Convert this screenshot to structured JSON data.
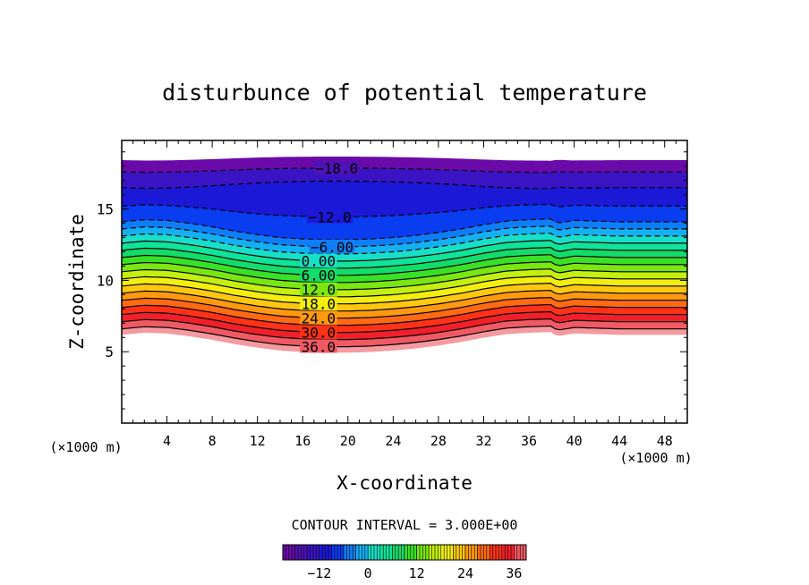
{
  "chart_data": {
    "type": "filled-contour",
    "title": "disturbunce of potential temperature",
    "xlabel": "X-coordinate",
    "ylabel": "Z-coordinate",
    "x_unit": "(×1000 m)",
    "z_unit": "(×1000 m)",
    "xlim": [
      0,
      50
    ],
    "ylim": [
      0,
      19.8
    ],
    "x_ticks": [
      4,
      8,
      12,
      16,
      20,
      24,
      28,
      32,
      36,
      40,
      44,
      48
    ],
    "x_tick_labels": [
      "4",
      "8",
      "12",
      "16",
      "20",
      "24",
      "28",
      "32",
      "36",
      "40",
      "44",
      "48"
    ],
    "y_ticks": [
      5,
      10,
      15
    ],
    "y_tick_labels": [
      "5",
      "10",
      "15"
    ],
    "contour_interval_label": "CONTOUR INTERVAL = 3.000E+00",
    "contour_interval": 3.0,
    "value_range": [
      -21,
      39
    ],
    "colorbar_ticks": [
      -12,
      0,
      12,
      24,
      36
    ],
    "colorbar_tick_labels": [
      "−12",
      "0",
      "12",
      "24",
      "36"
    ],
    "negative_contours": "dashed",
    "profile_x": [
      0,
      2,
      4,
      6,
      8,
      10,
      12,
      14,
      16,
      18,
      20,
      22,
      24,
      26,
      28,
      30,
      32,
      34,
      36,
      38,
      38.5,
      40,
      42,
      44,
      46,
      48,
      50
    ],
    "shift_z": [
      0.0,
      0.15,
      0.1,
      -0.1,
      -0.35,
      -0.65,
      -0.9,
      -1.1,
      -1.2,
      -1.25,
      -1.25,
      -1.2,
      -1.1,
      -0.95,
      -0.75,
      -0.5,
      -0.2,
      0.05,
      0.15,
      0.2,
      -0.1,
      0.1,
      0.05,
      0.0,
      0.0,
      0.0,
      0.0
    ],
    "base_level_z": {
      "36": 6.6,
      "33": 7.1,
      "30": 7.6,
      "27": 8.1,
      "24": 8.6,
      "21": 9.1,
      "18": 9.6,
      "15": 10.1,
      "12": 10.6,
      "9": 11.1,
      "6": 11.6,
      "3": 12.1,
      "0": 12.6,
      "-3": 13.1,
      "-6": 13.6,
      "-9": 14.1,
      "-12": 15.2,
      "-15": 16.5,
      "-18": 17.6
    },
    "bottom_edge_z": 6.2,
    "top_edge_z": 18.4,
    "contour_labels": [
      {
        "value": -18,
        "text": "−18.0",
        "x": 19.0
      },
      {
        "value": -12,
        "text": "−12.0",
        "x": 18.4
      },
      {
        "value": -6,
        "text": "−6.00",
        "x": 18.6
      },
      {
        "value": 0,
        "text": "0.00",
        "x": 17.4
      },
      {
        "value": 6,
        "text": "6.00",
        "x": 17.4
      },
      {
        "value": 12,
        "text": "12.0",
        "x": 17.4
      },
      {
        "value": 18,
        "text": "18.0",
        "x": 17.4
      },
      {
        "value": 24,
        "text": "24.0",
        "x": 17.4
      },
      {
        "value": 30,
        "text": "30.0",
        "x": 17.4
      },
      {
        "value": 36,
        "text": "36.0",
        "x": 17.4
      }
    ],
    "colors": {
      "-21": "#6a0aa8",
      "-18": "#4f12b4",
      "-15": "#3a14c4",
      "-12": "#1b18d6",
      "-9": "#0a3cf0",
      "-6": "#0f7ef6",
      "-3": "#14b0f0",
      "0": "#18e0c8",
      "3": "#10e39a",
      "6": "#14dc6a",
      "9": "#3ae028",
      "12": "#7ae612",
      "15": "#c4ef10",
      "18": "#f2ee10",
      "21": "#ffc810",
      "24": "#ff9a10",
      "27": "#ff6a12",
      "30": "#ff3218",
      "33": "#f0202a",
      "36": "#f05a64",
      "39": "#f49aa0"
    }
  }
}
